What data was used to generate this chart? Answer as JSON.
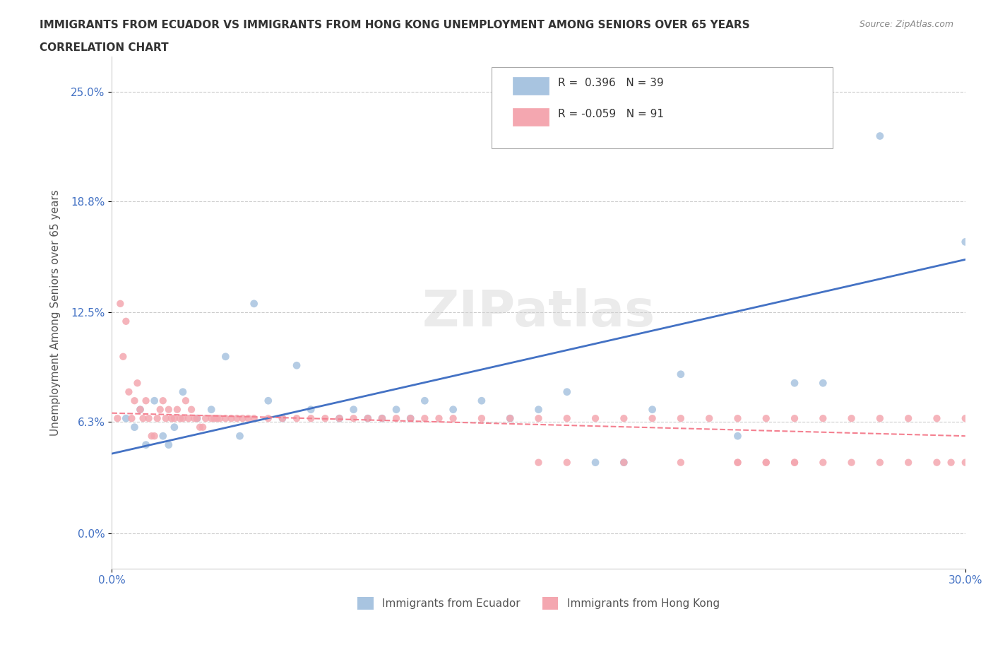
{
  "title_line1": "IMMIGRANTS FROM ECUADOR VS IMMIGRANTS FROM HONG KONG UNEMPLOYMENT AMONG SENIORS OVER 65 YEARS",
  "title_line2": "CORRELATION CHART",
  "source_text": "Source: ZipAtlas.com",
  "xlabel": "",
  "ylabel": "Unemployment Among Seniors over 65 years",
  "xlim": [
    0.0,
    0.3
  ],
  "ylim": [
    -0.02,
    0.27
  ],
  "yticks": [
    0.0,
    0.063,
    0.125,
    0.188,
    0.25
  ],
  "ytick_labels": [
    "0.0%",
    "6.3%",
    "12.5%",
    "18.8%",
    "25.0%"
  ],
  "xticks": [
    0.0,
    0.3
  ],
  "xtick_labels": [
    "0.0%",
    "30.0%"
  ],
  "grid_color": "#cccccc",
  "watermark": "ZIPatlas",
  "ecuador_color": "#a8c4e0",
  "hong_kong_color": "#f4a7b0",
  "ecuador_R": 0.396,
  "ecuador_N": 39,
  "hong_kong_R": -0.059,
  "hong_kong_N": 91,
  "ecuador_scatter_x": [
    0.005,
    0.008,
    0.01,
    0.012,
    0.015,
    0.018,
    0.02,
    0.022,
    0.025,
    0.03,
    0.035,
    0.04,
    0.045,
    0.05,
    0.055,
    0.06,
    0.065,
    0.07,
    0.08,
    0.085,
    0.09,
    0.095,
    0.1,
    0.105,
    0.11,
    0.12,
    0.13,
    0.14,
    0.15,
    0.16,
    0.17,
    0.18,
    0.19,
    0.2,
    0.22,
    0.24,
    0.25,
    0.27,
    0.3
  ],
  "ecuador_scatter_y": [
    0.065,
    0.06,
    0.07,
    0.05,
    0.075,
    0.055,
    0.05,
    0.06,
    0.08,
    0.065,
    0.07,
    0.1,
    0.055,
    0.13,
    0.075,
    0.065,
    0.095,
    0.07,
    0.065,
    0.07,
    0.065,
    0.065,
    0.07,
    0.065,
    0.075,
    0.07,
    0.075,
    0.065,
    0.07,
    0.08,
    0.04,
    0.04,
    0.07,
    0.09,
    0.055,
    0.085,
    0.085,
    0.225,
    0.165
  ],
  "hong_kong_scatter_x": [
    0.002,
    0.003,
    0.004,
    0.005,
    0.006,
    0.007,
    0.008,
    0.009,
    0.01,
    0.011,
    0.012,
    0.013,
    0.014,
    0.015,
    0.016,
    0.017,
    0.018,
    0.019,
    0.02,
    0.021,
    0.022,
    0.023,
    0.024,
    0.025,
    0.026,
    0.027,
    0.028,
    0.029,
    0.03,
    0.031,
    0.032,
    0.033,
    0.035,
    0.036,
    0.037,
    0.038,
    0.04,
    0.042,
    0.044,
    0.046,
    0.048,
    0.05,
    0.055,
    0.06,
    0.065,
    0.07,
    0.075,
    0.08,
    0.085,
    0.09,
    0.095,
    0.1,
    0.105,
    0.11,
    0.115,
    0.12,
    0.13,
    0.14,
    0.15,
    0.16,
    0.17,
    0.18,
    0.19,
    0.2,
    0.21,
    0.22,
    0.23,
    0.24,
    0.25,
    0.26,
    0.27,
    0.28,
    0.29,
    0.3,
    0.15,
    0.16,
    0.18,
    0.2,
    0.22,
    0.22,
    0.23,
    0.24,
    0.23,
    0.24,
    0.25,
    0.26,
    0.27,
    0.28,
    0.29,
    0.295,
    0.3
  ],
  "hong_kong_scatter_y": [
    0.065,
    0.13,
    0.1,
    0.12,
    0.08,
    0.065,
    0.075,
    0.085,
    0.07,
    0.065,
    0.075,
    0.065,
    0.055,
    0.055,
    0.065,
    0.07,
    0.075,
    0.065,
    0.07,
    0.065,
    0.065,
    0.07,
    0.065,
    0.065,
    0.075,
    0.065,
    0.07,
    0.065,
    0.065,
    0.06,
    0.06,
    0.065,
    0.065,
    0.065,
    0.065,
    0.065,
    0.065,
    0.065,
    0.065,
    0.065,
    0.065,
    0.065,
    0.065,
    0.065,
    0.065,
    0.065,
    0.065,
    0.065,
    0.065,
    0.065,
    0.065,
    0.065,
    0.065,
    0.065,
    0.065,
    0.065,
    0.065,
    0.065,
    0.065,
    0.065,
    0.065,
    0.065,
    0.065,
    0.065,
    0.065,
    0.065,
    0.065,
    0.065,
    0.065,
    0.065,
    0.065,
    0.065,
    0.065,
    0.065,
    0.04,
    0.04,
    0.04,
    0.04,
    0.04,
    0.04,
    0.04,
    0.04,
    0.04,
    0.04,
    0.04,
    0.04,
    0.04,
    0.04,
    0.04,
    0.04,
    0.04
  ],
  "ecuador_trend_x": [
    0.0,
    0.3
  ],
  "ecuador_trend_y_start": 0.045,
  "ecuador_trend_y_end": 0.155,
  "hong_kong_trend_x": [
    0.0,
    0.3
  ],
  "hong_kong_trend_y_start": 0.068,
  "hong_kong_trend_y_end": 0.055,
  "title_color": "#333333",
  "axis_label_color": "#555555",
  "tick_label_color": "#4472c4",
  "legend_label1": "Immigrants from Ecuador",
  "legend_label2": "Immigrants from Hong Kong"
}
